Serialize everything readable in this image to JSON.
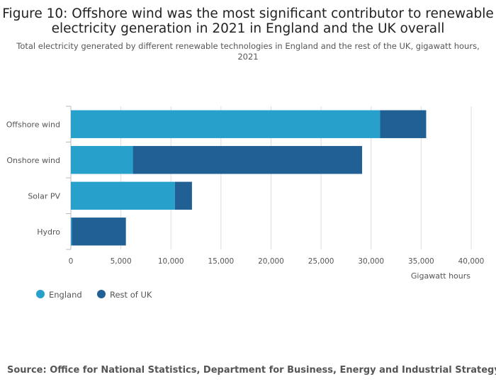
{
  "chart_data": {
    "type": "bar",
    "orientation": "horizontal",
    "stacked": true,
    "title_lines": [
      "Figure 10: Offshore wind was the most significant contributor to renewable",
      "electricity generation in 2021 in England and the UK overall"
    ],
    "subtitle_lines": [
      "Total electricity generated by different renewable technologies in England and the rest of the UK, gigawatt hours,",
      "2021"
    ],
    "categories": [
      "Offshore wind",
      "Onshore wind",
      "Solar PV",
      "Hydro"
    ],
    "series": [
      {
        "name": "England",
        "color": "#27a0cc",
        "values": [
          30900,
          6200,
          10400,
          100
        ]
      },
      {
        "name": "Rest of UK",
        "color": "#206095",
        "values": [
          4600,
          22900,
          1700,
          5400
        ]
      }
    ],
    "xlim": [
      0,
      40000
    ],
    "xticks": [
      0,
      5000,
      10000,
      15000,
      20000,
      25000,
      30000,
      35000,
      40000
    ],
    "xtick_labels": [
      "0",
      "5,000",
      "10,000",
      "15,000",
      "20,000",
      "25,000",
      "30,000",
      "35,000",
      "40,000"
    ],
    "xlabel": "Gigawatt hours",
    "ylabel": "",
    "grid": true,
    "legend_position": "bottom-left",
    "source": "Source: Office for National Statistics, Department for Business, Energy and Industrial Strategy"
  },
  "colors": {
    "grid": "#dddddd",
    "axis": "#bbbbbb"
  }
}
